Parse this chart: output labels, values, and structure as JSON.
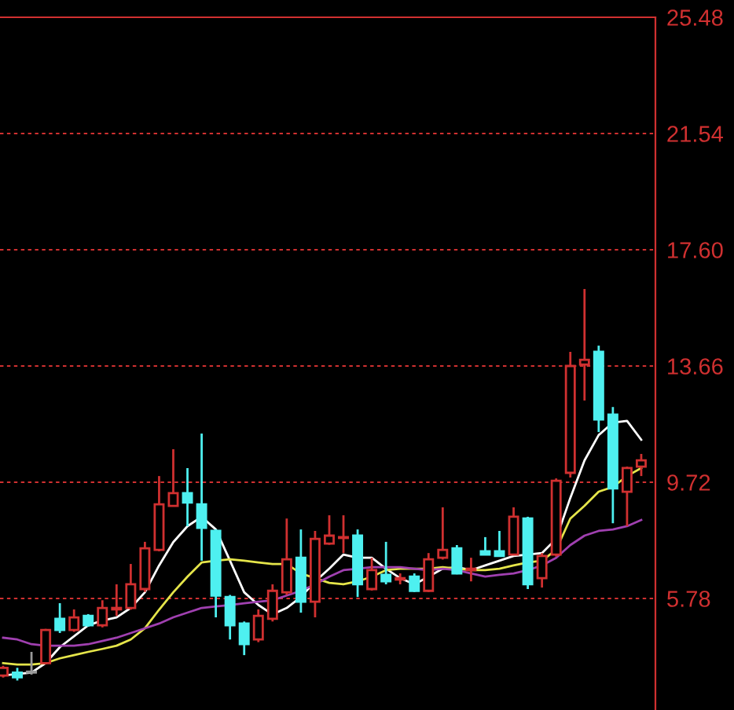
{
  "chart_data": {
    "type": "candlestick",
    "categories": [
      null,
      null,
      null,
      null,
      null,
      null,
      null,
      null,
      null,
      null,
      null,
      null,
      null,
      null,
      null,
      null,
      null,
      null,
      null,
      null,
      null,
      null,
      null,
      null,
      null,
      null,
      null,
      null,
      null,
      null,
      null,
      null,
      null,
      null,
      null,
      null,
      null,
      null,
      null,
      null,
      null,
      null,
      null,
      null,
      null,
      null
    ],
    "ohlc": [
      [
        3.17,
        3.5,
        3.1,
        3.43
      ],
      [
        3.27,
        3.43,
        3.0,
        3.11
      ],
      [
        3.3,
        3.97,
        3.2,
        3.27
      ],
      [
        3.59,
        4.75,
        3.55,
        4.71
      ],
      [
        5.09,
        5.62,
        4.61,
        4.71
      ],
      [
        4.71,
        5.41,
        4.65,
        5.14
      ],
      [
        5.19,
        5.25,
        4.82,
        4.87
      ],
      [
        4.87,
        5.72,
        4.8,
        5.46
      ],
      [
        5.41,
        6.26,
        5.19,
        5.46
      ],
      [
        5.46,
        6.95,
        5.4,
        6.26
      ],
      [
        6.1,
        7.7,
        6.0,
        7.48
      ],
      [
        7.43,
        9.93,
        7.38,
        8.97
      ],
      [
        8.92,
        10.84,
        8.9,
        9.35
      ],
      [
        9.35,
        10.2,
        8.23,
        9.03
      ],
      [
        8.97,
        11.37,
        7.06,
        8.17
      ],
      [
        8.07,
        8.12,
        5.14,
        5.88
      ],
      [
        5.83,
        5.9,
        4.39,
        4.87
      ],
      [
        4.93,
        5.0,
        3.86,
        4.23
      ],
      [
        4.39,
        5.41,
        4.3,
        5.19
      ],
      [
        5.09,
        6.26,
        5.0,
        6.04
      ],
      [
        5.99,
        8.49,
        5.9,
        7.11
      ],
      [
        7.16,
        8.12,
        5.3,
        5.67
      ],
      [
        5.67,
        8.07,
        5.14,
        7.8
      ],
      [
        7.64,
        8.6,
        7.6,
        7.91
      ],
      [
        7.83,
        8.6,
        7.32,
        7.86
      ],
      [
        7.91,
        8.12,
        5.83,
        6.26
      ],
      [
        6.1,
        7.16,
        6.05,
        6.74
      ],
      [
        6.58,
        7.7,
        6.26,
        6.36
      ],
      [
        6.42,
        6.63,
        6.26,
        6.47
      ],
      [
        6.52,
        6.63,
        6.0,
        6.04
      ],
      [
        6.04,
        7.32,
        6.0,
        7.11
      ],
      [
        7.16,
        8.87,
        7.1,
        7.43
      ],
      [
        7.48,
        7.59,
        6.6,
        6.63
      ],
      [
        6.74,
        7.16,
        6.36,
        6.79
      ],
      [
        7.38,
        7.86,
        7.25,
        7.27
      ],
      [
        7.38,
        8.07,
        7.2,
        7.22
      ],
      [
        7.27,
        8.87,
        7.25,
        8.55
      ],
      [
        8.49,
        8.55,
        6.1,
        6.26
      ],
      [
        6.47,
        7.32,
        6.15,
        7.22
      ],
      [
        7.27,
        9.85,
        7.2,
        9.77
      ],
      [
        10.04,
        14.14,
        9.88,
        13.66
      ],
      [
        13.71,
        16.27,
        12.49,
        13.87
      ],
      [
        14.14,
        14.35,
        11.42,
        11.85
      ],
      [
        12.01,
        12.27,
        8.33,
        9.51
      ],
      [
        9.4,
        10.25,
        8.23,
        10.2
      ],
      [
        10.25,
        10.68,
        9.93,
        10.46
      ]
    ],
    "colors": [
      "#d03030",
      "#4ef0f0",
      "#9a9a9a",
      "#d03030",
      "#4ef0f0",
      "#d03030",
      "#4ef0f0",
      "#d03030",
      "#d03030",
      "#d03030",
      "#d03030",
      "#d03030",
      "#d03030",
      "#4ef0f0",
      "#4ef0f0",
      "#4ef0f0",
      "#4ef0f0",
      "#4ef0f0",
      "#d03030",
      "#d03030",
      "#d03030",
      "#4ef0f0",
      "#d03030",
      "#d03030",
      "#d03030",
      "#4ef0f0",
      "#d03030",
      "#4ef0f0",
      "#d03030",
      "#4ef0f0",
      "#d03030",
      "#d03030",
      "#4ef0f0",
      "#d03030",
      "#4ef0f0",
      "#4ef0f0",
      "#d03030",
      "#4ef0f0",
      "#d03030",
      "#d03030",
      "#d03030",
      "#d03030",
      "#4ef0f0",
      "#4ef0f0",
      "#d03030",
      "#d03030"
    ],
    "series": [
      {
        "type": "line",
        "color": "#ffffff",
        "values": [
          3.17,
          3.22,
          3.27,
          3.59,
          4.13,
          4.5,
          4.87,
          5.03,
          5.14,
          5.46,
          5.99,
          6.9,
          7.69,
          8.23,
          8.55,
          8.12,
          7.06,
          5.99,
          5.56,
          5.24,
          5.46,
          5.83,
          6.36,
          6.79,
          7.27,
          7.16,
          7.16,
          6.79,
          6.47,
          6.26,
          6.52,
          6.79,
          6.84,
          6.74,
          6.9,
          7.06,
          7.22,
          7.27,
          7.32,
          7.8,
          9.19,
          10.46,
          11.32,
          11.74,
          11.8,
          11.16
        ]
      },
      {
        "type": "line",
        "color": "#e5e54a",
        "values": [
          3.59,
          3.54,
          3.54,
          3.59,
          3.75,
          3.86,
          3.97,
          4.07,
          4.18,
          4.39,
          4.77,
          5.4,
          5.99,
          6.52,
          7.0,
          7.06,
          7.11,
          7.06,
          7.0,
          6.95,
          6.95,
          6.63,
          6.47,
          6.31,
          6.26,
          6.36,
          6.52,
          6.74,
          6.79,
          6.79,
          6.79,
          6.84,
          6.79,
          6.74,
          6.74,
          6.79,
          6.9,
          7.0,
          7.06,
          7.43,
          8.49,
          8.92,
          9.4,
          9.56,
          9.93,
          10.2
        ]
      },
      {
        "type": "line",
        "color": "#a040b0",
        "values": [
          4.45,
          4.39,
          4.23,
          4.18,
          4.18,
          4.18,
          4.23,
          4.34,
          4.45,
          4.61,
          4.77,
          4.93,
          5.14,
          5.3,
          5.46,
          5.51,
          5.56,
          5.62,
          5.67,
          5.72,
          5.88,
          6.04,
          6.26,
          6.52,
          6.74,
          6.79,
          6.84,
          6.84,
          6.84,
          6.79,
          6.74,
          6.79,
          6.74,
          6.63,
          6.52,
          6.58,
          6.63,
          6.74,
          6.9,
          7.16,
          7.59,
          7.91,
          8.07,
          8.12,
          8.23,
          8.44
        ]
      }
    ],
    "ylim": [
      2.0,
      25.48
    ],
    "yticks": [
      25.48,
      21.54,
      {
        "value": 17.6,
        "label": "17.60"
      },
      13.66,
      9.72,
      5.78
    ],
    "grid": "y",
    "tick_labels": "y"
  }
}
